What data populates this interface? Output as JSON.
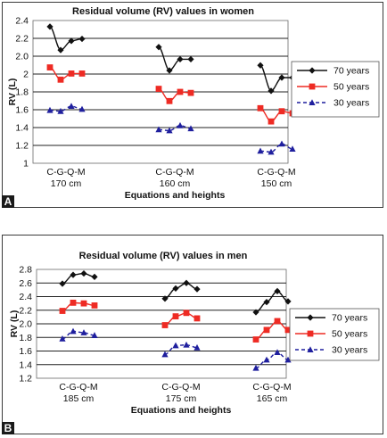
{
  "chart_data": [
    {
      "panel": "A",
      "type": "line",
      "title": "Residual volume (RV) values in women",
      "ylabel": "RV (L)",
      "xlabel": "Equations and heights",
      "ylim": [
        1.0,
        2.4
      ],
      "yticks": [
        "1",
        "1.2",
        "1.4",
        "1.6",
        "1.8",
        "2",
        "2.0",
        "2.2",
        "2.4"
      ],
      "groups": [
        {
          "label": "C-G-Q-M",
          "height": "170 cm"
        },
        {
          "label": "C-G-Q-M",
          "height": "160 cm"
        },
        {
          "label": "C-G-Q-M",
          "height": "150 cm"
        }
      ],
      "series": [
        {
          "name": "70 years",
          "color": "#111111",
          "marker": "diamond",
          "line": "solid",
          "groups": [
            [
              2.34,
              2.11,
              2.2,
              2.22
            ],
            [
              2.14,
              1.91,
              2.02,
              2.02
            ],
            [
              1.96,
              1.71,
              1.84,
              1.84
            ]
          ]
        },
        {
          "name": "50 years",
          "color": "#ee2b24",
          "marker": "square",
          "line": "solid",
          "groups": [
            [
              1.94,
              1.82,
              1.88,
              1.88
            ],
            [
              1.73,
              1.61,
              1.7,
              1.69
            ],
            [
              1.54,
              1.41,
              1.51,
              1.49
            ]
          ]
        },
        {
          "name": "30 years",
          "color": "#1f1f9e",
          "marker": "triangle",
          "line": "dashed",
          "groups": [
            [
              1.52,
              1.51,
              1.56,
              1.53
            ],
            [
              1.33,
              1.32,
              1.37,
              1.34
            ],
            [
              1.12,
              1.11,
              1.19,
              1.14
            ]
          ]
        }
      ],
      "legend": "right",
      "grid": true
    },
    {
      "panel": "B",
      "type": "line",
      "title": "Residual volume (RV) values in men",
      "ylabel": "RV (L)",
      "xlabel": "Equations and heights",
      "ylim": [
        1.2,
        2.8
      ],
      "yticks": [
        "1.2",
        "1.4",
        "1.6",
        "1.8",
        "2.0",
        "2.2",
        "2.4",
        "2.6",
        "2.8"
      ],
      "groups": [
        {
          "label": "C-G-Q-M",
          "height": "185 cm"
        },
        {
          "label": "C-G-Q-M",
          "height": "175 cm"
        },
        {
          "label": "C-G-Q-M",
          "height": "165 cm"
        }
      ],
      "series": [
        {
          "name": "70 years",
          "color": "#111111",
          "marker": "diamond",
          "line": "solid",
          "groups": [
            [
              2.59,
              2.72,
              2.74,
              2.69
            ],
            [
              2.37,
              2.52,
              2.6,
              2.51
            ],
            [
              2.17,
              2.32,
              2.48,
              2.33
            ]
          ]
        },
        {
          "name": "50 years",
          "color": "#ee2b24",
          "marker": "square",
          "line": "solid",
          "groups": [
            [
              2.19,
              2.31,
              2.3,
              2.27
            ],
            [
              1.98,
              2.11,
              2.16,
              2.08
            ],
            [
              1.77,
              1.91,
              2.04,
              1.91
            ]
          ]
        },
        {
          "name": "30 years",
          "color": "#1f1f9e",
          "marker": "triangle",
          "line": "dashed",
          "groups": [
            [
              1.78,
              1.89,
              1.87,
              1.83
            ],
            [
              1.55,
              1.68,
              1.69,
              1.65
            ],
            [
              1.35,
              1.47,
              1.58,
              1.47
            ]
          ]
        }
      ],
      "legend": "right",
      "grid": true
    }
  ]
}
